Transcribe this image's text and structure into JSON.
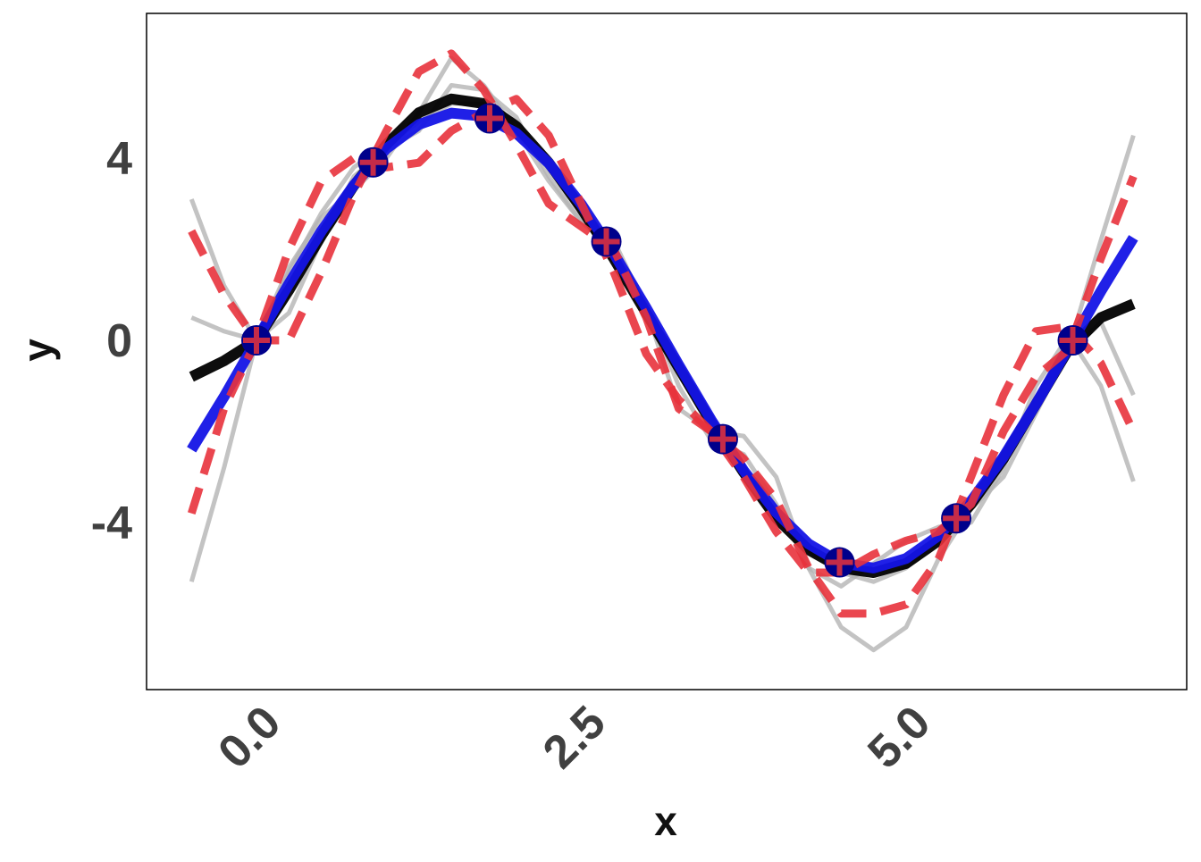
{
  "chart_data": {
    "type": "line",
    "x_label": "x",
    "y_label": "y",
    "xlim": [
      -0.846,
      7.16
    ],
    "ylim": [
      -7.67,
      7.18
    ],
    "xticks": [
      {
        "value": 0,
        "label": "0.0"
      },
      2.5,
      {
        "value": 5,
        "label": "5.0"
      }
    ],
    "yticks": [
      -4,
      0,
      4
    ],
    "grid": false,
    "x": [
      -0.5,
      -0.25,
      0,
      0.25,
      0.5,
      0.75,
      1,
      1.25,
      1.5,
      1.75,
      2,
      2.25,
      2.5,
      2.75,
      3,
      3.25,
      3.5,
      3.75,
      4,
      4.25,
      4.5,
      4.75,
      5,
      5.25,
      5.5,
      5.75,
      6,
      6.25,
      6.5,
      6.75
    ],
    "series": [
      {
        "color": "#b4b4b4",
        "linestyle": "solid",
        "values": [
          3.1,
          1.2,
          0,
          0.6,
          2.2,
          3.6,
          4.2,
          4.6,
          5.6,
          5.5,
          4.9,
          3.6,
          2.6,
          2.0,
          0.8,
          -1.0,
          -2.2,
          -2.5,
          -3.6,
          -5.0,
          -5.4,
          -4.9,
          -4.4,
          -4.1,
          -4.0,
          -2.8,
          -1.0,
          0.1,
          -1.0,
          -3.1
        ]
      },
      {
        "color": "#b4b4b4",
        "linestyle": "solid",
        "values": [
          -5.3,
          -2.8,
          0,
          1.6,
          2.7,
          3.3,
          4.0,
          5.0,
          6.2,
          5.6,
          4.6,
          3.5,
          2.6,
          2.2,
          0.7,
          -1.5,
          -2.0,
          -2.1,
          -3.0,
          -5.0,
          -6.3,
          -6.8,
          -6.3,
          -4.8,
          -3.7,
          -3.0,
          -1.6,
          -0.2,
          2.2,
          4.5
        ]
      },
      {
        "color": "#b4b4b4",
        "linestyle": "solid",
        "values": [
          0.5,
          0.2,
          0,
          1.5,
          2.8,
          3.8,
          4.3,
          4.8,
          5.2,
          5.2,
          4.8,
          3.8,
          2.8,
          1.9,
          0.7,
          -0.7,
          -1.9,
          -3.0,
          -3.9,
          -4.6,
          -5.1,
          -5.3,
          -5.0,
          -4.3,
          -3.5,
          -2.5,
          -1.3,
          -0.3,
          0.4,
          -1.2
        ]
      },
      {
        "color": "#000000",
        "linestyle": "solid",
        "values": [
          -0.8,
          -0.45,
          0,
          1.1,
          2.3,
          3.4,
          4.3,
          5.0,
          5.3,
          5.2,
          4.7,
          3.9,
          2.9,
          1.8,
          0.6,
          -0.6,
          -1.8,
          -2.9,
          -3.9,
          -4.6,
          -5.0,
          -5.1,
          -4.9,
          -4.4,
          -3.6,
          -2.6,
          -1.4,
          -0.2,
          0.5,
          0.8
        ]
      },
      {
        "color": "#1414e6",
        "linestyle": "solid",
        "values": [
          -2.4,
          -1.24,
          0,
          1.24,
          2.4,
          3.41,
          4.21,
          4.74,
          4.99,
          4.92,
          4.55,
          3.89,
          2.99,
          1.91,
          0.71,
          -0.54,
          -1.75,
          -2.86,
          -3.78,
          -4.47,
          -4.89,
          -5.0,
          -4.79,
          -4.29,
          -3.53,
          -2.56,
          -1.4,
          -0.16,
          1.08,
          2.25
        ]
      },
      {
        "color": "#e8323c",
        "linestyle": "dashed",
        "values": [
          2.4,
          1.0,
          0,
          0.0,
          1.5,
          3.2,
          4.6,
          5.9,
          6.3,
          5.5,
          4.3,
          3.0,
          2.5,
          2.0,
          0.5,
          -1.5,
          -2.0,
          -2.6,
          -3.5,
          -5.0,
          -6.0,
          -6.0,
          -5.8,
          -4.8,
          -3.0,
          -1.2,
          0.2,
          0.3,
          -0.5,
          -2.0
        ]
      },
      {
        "color": "#e8323c",
        "linestyle": "dashed",
        "values": [
          -3.8,
          -1.5,
          0,
          2.0,
          3.5,
          4.0,
          3.8,
          3.9,
          4.6,
          5.0,
          5.3,
          4.5,
          3.0,
          1.5,
          -0.3,
          -1.3,
          -2.0,
          -3.0,
          -4.2,
          -5.1,
          -5.1,
          -4.7,
          -4.4,
          -4.2,
          -3.6,
          -2.0,
          -0.8,
          -0.2,
          1.8,
          3.6
        ]
      }
    ],
    "scatter": {
      "color": "#00008b",
      "marker_color": "#e8323c",
      "x": [
        0,
        0.898,
        1.795,
        2.693,
        3.59,
        4.488,
        5.386,
        6.283
      ],
      "values": [
        0,
        3.909,
        4.875,
        2.169,
        -2.169,
        -4.875,
        -3.909,
        0
      ]
    }
  }
}
